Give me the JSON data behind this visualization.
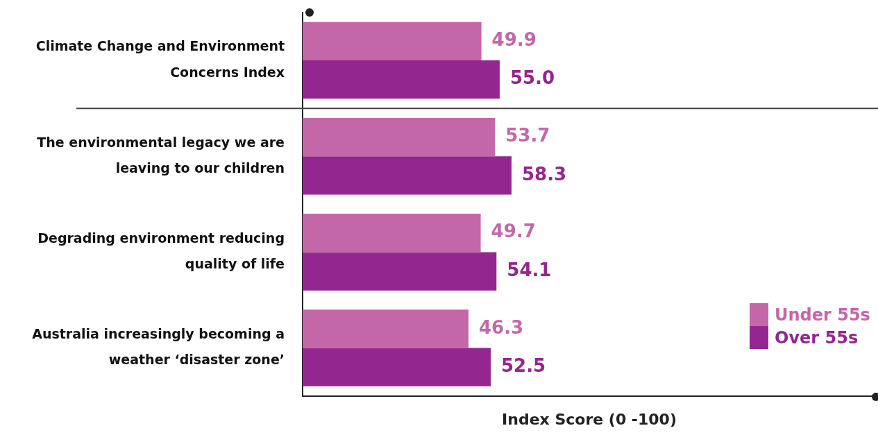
{
  "chart_data": {
    "type": "bar",
    "orientation": "horizontal",
    "xlabel": "Index Score (0 -100)",
    "categories": [
      "Climate Change and Environment Concerns Index",
      "The environmental legacy we are leaving to our children",
      "Degrading environment reducing quality of life",
      "Australia increasingly becoming a weather ‘disaster zone’"
    ],
    "series": [
      {
        "name": "Under 55s",
        "color": "#c467a8",
        "values": [
          49.9,
          53.7,
          49.7,
          46.3
        ],
        "value_labels": [
          "49.9",
          "53.7",
          "49.7",
          "46.3"
        ]
      },
      {
        "name": "Over 55s",
        "color": "#93278f",
        "values": [
          55.0,
          58.3,
          54.1,
          52.5
        ],
        "value_labels": [
          "55.0",
          "58.3",
          "54.1",
          "52.5"
        ]
      }
    ],
    "xlim": [
      0,
      160
    ],
    "tick_labels": "y",
    "legend": "bottom right",
    "grid": false
  }
}
